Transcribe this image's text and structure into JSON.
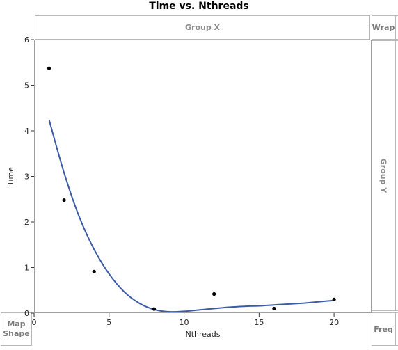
{
  "zones": {
    "group_x": "Group X",
    "group_y": "Group Y",
    "wrap": "Wrap",
    "map_shape": "Map\nShape",
    "freq": "Freq"
  },
  "chart_data": {
    "type": "scatter",
    "title": "Time vs. Nthreads",
    "xlabel": "Nthreads",
    "ylabel": "Time",
    "xlim": [
      0,
      22.5
    ],
    "ylim": [
      0,
      6
    ],
    "xticks": [
      0,
      5,
      10,
      15,
      20
    ],
    "yticks": [
      0,
      1,
      2,
      3,
      4,
      5,
      6
    ],
    "grid": false,
    "points": [
      {
        "x": 1,
        "y": 5.37
      },
      {
        "x": 2,
        "y": 2.48
      },
      {
        "x": 4,
        "y": 0.91
      },
      {
        "x": 8,
        "y": 0.09
      },
      {
        "x": 12,
        "y": 0.42
      },
      {
        "x": 16,
        "y": 0.1
      },
      {
        "x": 20,
        "y": 0.3
      }
    ],
    "smoother": {
      "x": [
        1,
        2,
        3,
        4,
        5,
        6,
        7,
        8,
        9,
        10,
        11,
        12,
        13,
        14,
        15,
        16,
        17,
        18,
        19,
        20
      ],
      "y": [
        4.24,
        3.08,
        2.12,
        1.4,
        0.86,
        0.47,
        0.22,
        0.08,
        0.03,
        0.04,
        0.07,
        0.1,
        0.13,
        0.15,
        0.16,
        0.18,
        0.2,
        0.22,
        0.25,
        0.28
      ],
      "color": "#3b5ba5"
    },
    "marker_color": "#000000"
  }
}
